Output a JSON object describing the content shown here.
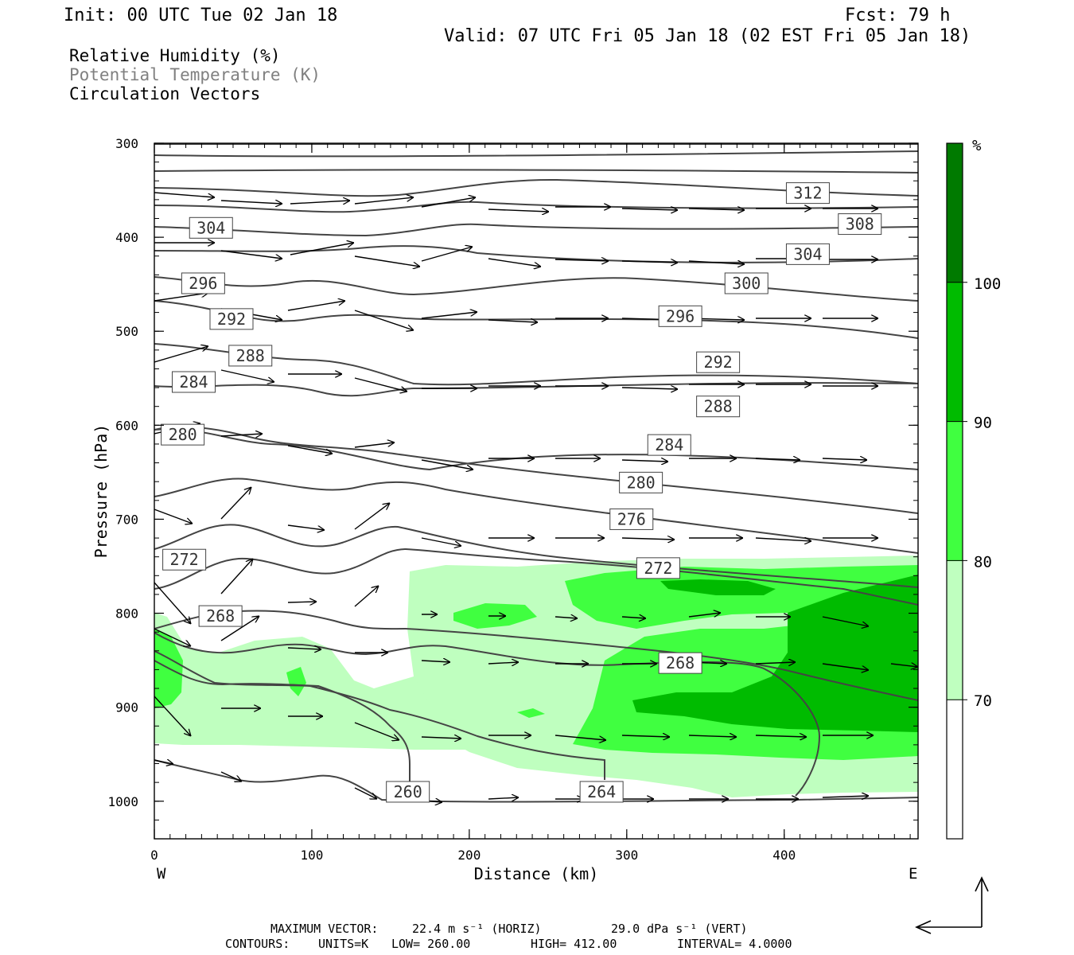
{
  "header": {
    "init": "Init: 00 UTC Tue 02 Jan 18",
    "fcst": "Fcst:   79 h",
    "valid": "Valid: 07 UTC Fri 05 Jan 18 (02 EST Fri 05 Jan 18)"
  },
  "legend": {
    "rh": "Relative Humidity (%)",
    "theta": "Potential Temperature (K)",
    "vectors": "Circulation Vectors"
  },
  "footer": {
    "max_vector_label": "MAXIMUM VECTOR:",
    "max_vector_horiz": "22.4 m s⁻¹ (HORIZ)",
    "max_vector_vert": "29.0 dPa s⁻¹ (VERT)",
    "contours_label": "CONTOURS:",
    "units": "UNITS=K",
    "low": "LOW=   260.00",
    "high": "HIGH=   412.00",
    "interval": "INTERVAL=    4.0000"
  },
  "colors": {
    "rh_70_80": "#bfffbf",
    "rh_80_90": "#40ff40",
    "rh_90_100": "#00bb00",
    "rh_100": "#007a00",
    "contour": "#444444",
    "vector": "#000000"
  },
  "chart_data": {
    "type": "cross-section",
    "xlabel": "Distance (km)",
    "ylabel": "Pressure (hPa)",
    "x_ticks": [
      0,
      100,
      200,
      300,
      400
    ],
    "y_ticks": [
      300,
      400,
      500,
      600,
      700,
      800,
      900,
      1000
    ],
    "xlim": [
      0,
      485
    ],
    "ylim": [
      300,
      1040
    ],
    "x_end_labels": {
      "west": "W",
      "east": "E"
    },
    "colorbar": {
      "unit": "%",
      "ticks": [
        70,
        80,
        90,
        100
      ],
      "range": [
        60,
        110
      ]
    },
    "contour_labels": [
      {
        "v": "312",
        "x": 415,
        "p": 353
      },
      {
        "v": "308",
        "x": 448,
        "p": 386
      },
      {
        "v": "304",
        "x": 36,
        "p": 390
      },
      {
        "v": "304",
        "x": 415,
        "p": 418
      },
      {
        "v": "300",
        "x": 376,
        "p": 449
      },
      {
        "v": "296",
        "x": 31,
        "p": 449
      },
      {
        "v": "296",
        "x": 334,
        "p": 484
      },
      {
        "v": "292",
        "x": 49,
        "p": 487
      },
      {
        "v": "292",
        "x": 358,
        "p": 533
      },
      {
        "v": "288",
        "x": 61,
        "p": 526
      },
      {
        "v": "288",
        "x": 358,
        "p": 580
      },
      {
        "v": "284",
        "x": 25,
        "p": 554
      },
      {
        "v": "284",
        "x": 327,
        "p": 621
      },
      {
        "v": "280",
        "x": 18,
        "p": 610
      },
      {
        "v": "280",
        "x": 309,
        "p": 661
      },
      {
        "v": "276",
        "x": 303,
        "p": 700
      },
      {
        "v": "272",
        "x": 19,
        "p": 743
      },
      {
        "v": "272",
        "x": 320,
        "p": 752
      },
      {
        "v": "268",
        "x": 42,
        "p": 803
      },
      {
        "v": "268",
        "x": 334,
        "p": 853
      },
      {
        "v": "264",
        "x": 284,
        "p": 990
      },
      {
        "v": "260",
        "x": 161,
        "p": 990
      }
    ]
  }
}
